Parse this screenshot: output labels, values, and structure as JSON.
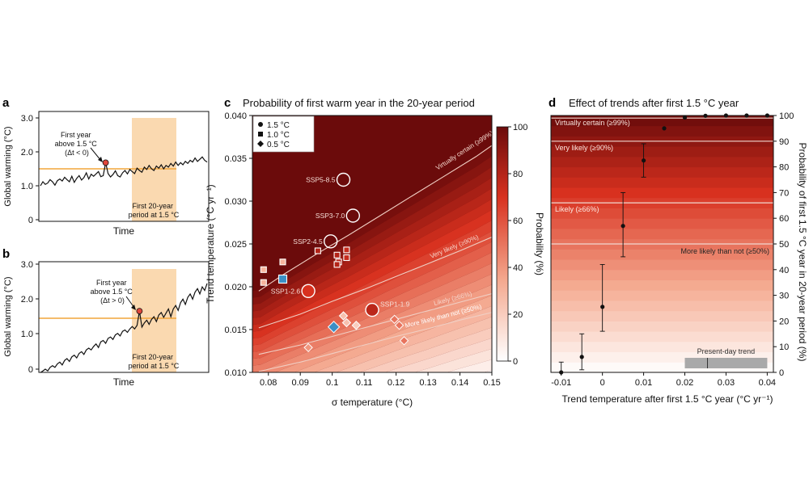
{
  "colors": {
    "orange_line": "#f2a53a",
    "band": "#fad9b0",
    "red_point": "#e0463a",
    "marker_blue": "#3b8fc6",
    "marker_orange": "#f6b58c",
    "dark": "#6b0b0b",
    "contour": "#f6d9cf"
  },
  "panel_a": {
    "letter": "a",
    "ylabel": "Global warming (°C)",
    "xlabel": "Time",
    "yticks": [
      "0",
      "1.0",
      "2.0",
      "3.0"
    ],
    "annotation_lines": [
      "First year",
      "above 1.5 °C",
      "(Δt < 0)"
    ],
    "band_label_lines": [
      "First 20-year",
      "period at 1.5 °C"
    ],
    "series": [
      1.0,
      1.12,
      1.04,
      1.08,
      1.18,
      1.12,
      1.02,
      1.15,
      1.2,
      1.14,
      1.25,
      1.18,
      1.12,
      1.28,
      1.1,
      1.22,
      1.3,
      1.17,
      1.24,
      1.38,
      1.2,
      1.34,
      1.28,
      1.35,
      1.42,
      1.27,
      1.3,
      1.68,
      1.36,
      1.26,
      1.33,
      1.44,
      1.3,
      1.26,
      1.38,
      1.45,
      1.35,
      1.48,
      1.42,
      1.36,
      1.52,
      1.45,
      1.4,
      1.55,
      1.48,
      1.6,
      1.5,
      1.45,
      1.58,
      1.52,
      1.62,
      1.5,
      1.6,
      1.55,
      1.66,
      1.58,
      1.7,
      1.6,
      1.68,
      1.62,
      1.72,
      1.66,
      1.75,
      1.7,
      1.82,
      1.72,
      1.78,
      1.85,
      1.75,
      1.7
    ]
  },
  "panel_b": {
    "letter": "b",
    "ylabel": "Global warming (°C)",
    "xlabel": "Time",
    "yticks": [
      "0",
      "1.0",
      "2.0",
      "3.0"
    ],
    "annotation_lines": [
      "First year",
      "above 1.5 °C",
      "(Δt > 0)"
    ],
    "band_label_lines": [
      "First 20-year",
      "period at 1.5 °C"
    ],
    "series": [
      -0.1,
      -0.05,
      0.0,
      -0.05,
      0.05,
      0.1,
      0.05,
      0.15,
      0.2,
      0.12,
      0.25,
      0.3,
      0.22,
      0.35,
      0.4,
      0.32,
      0.45,
      0.5,
      0.42,
      0.55,
      0.6,
      0.55,
      0.65,
      0.72,
      0.62,
      0.78,
      0.82,
      0.74,
      0.88,
      0.92,
      0.85,
      0.98,
      1.02,
      0.95,
      1.08,
      1.12,
      1.05,
      1.15,
      1.22,
      1.15,
      1.25,
      1.66,
      1.2,
      1.32,
      1.4,
      1.28,
      1.42,
      1.5,
      1.36,
      1.55,
      1.62,
      1.48,
      1.6,
      1.72,
      1.5,
      1.72,
      1.82,
      1.68,
      1.9,
      2.0,
      1.85,
      2.05,
      2.15,
      2.0,
      2.2,
      2.3,
      2.15,
      2.35,
      2.25,
      2.45
    ]
  },
  "chart_data": [
    {
      "panel": "c",
      "type": "heatmap",
      "title": "Probability of first warm year in the 20-year period",
      "xlabel": "σ temperature (°C)",
      "ylabel": "Trend temperature (°C yr⁻¹)",
      "xlim": [
        0.075,
        0.15
      ],
      "ylim": [
        0.01,
        0.04
      ],
      "xticks": [
        "0.08",
        "0.09",
        "0.1",
        "0.11",
        "0.12",
        "0.13",
        "0.14",
        "0.15"
      ],
      "yticks": [
        "0.010",
        "0.015",
        "0.020",
        "0.025",
        "0.030",
        "0.035",
        "0.040"
      ],
      "colorbar": {
        "label": "Probability (%)",
        "ticks": [
          "0",
          "20",
          "40",
          "60",
          "80",
          "100"
        ]
      },
      "legend": [
        {
          "symbol": "circle",
          "label": "1.5 °C"
        },
        {
          "symbol": "square",
          "label": "1.0 °C"
        },
        {
          "symbol": "diamond",
          "label": "0.5 °C"
        }
      ],
      "contours": [
        {
          "label": "Virtually certain (≥99%)",
          "points": [
            [
              0.077,
              0.0195
            ],
            [
              0.085,
              0.0215
            ],
            [
              0.095,
              0.0238
            ],
            [
              0.105,
              0.026
            ],
            [
              0.115,
              0.0283
            ],
            [
              0.125,
              0.0306
            ],
            [
              0.135,
              0.0329
            ],
            [
              0.145,
              0.0352
            ],
            [
              0.15,
              0.0365
            ]
          ]
        },
        {
          "label": "Very likely (≥90%)",
          "points": [
            [
              0.077,
              0.0152
            ],
            [
              0.09,
              0.0168
            ],
            [
              0.1,
              0.0183
            ],
            [
              0.11,
              0.0197
            ],
            [
              0.12,
              0.0212
            ],
            [
              0.13,
              0.0227
            ],
            [
              0.14,
              0.0242
            ],
            [
              0.15,
              0.0258
            ]
          ]
        },
        {
          "label": "Likely (≥66%)",
          "points": [
            [
              0.077,
              0.0121
            ],
            [
              0.09,
              0.0132
            ],
            [
              0.1,
              0.0142
            ],
            [
              0.11,
              0.0152
            ],
            [
              0.12,
              0.0162
            ],
            [
              0.13,
              0.0172
            ],
            [
              0.14,
              0.0182
            ],
            [
              0.15,
              0.0192
            ]
          ]
        },
        {
          "label": "More likely than not (≥50%)",
          "points": [
            [
              0.077,
              0.0101
            ],
            [
              0.09,
              0.0112
            ],
            [
              0.1,
              0.0122
            ],
            [
              0.11,
              0.0132
            ],
            [
              0.12,
              0.0142
            ],
            [
              0.13,
              0.0151
            ],
            [
              0.14,
              0.0161
            ],
            [
              0.15,
              0.017
            ]
          ]
        }
      ],
      "points": [
        {
          "label": "SSP5-8.5",
          "shape": "circle",
          "x": 0.1035,
          "y": 0.0325,
          "p": 100
        },
        {
          "label": "SSP3-7.0",
          "shape": "circle",
          "x": 0.1065,
          "y": 0.0283,
          "p": 100
        },
        {
          "label": "SSP2-4.5",
          "shape": "circle",
          "x": 0.0995,
          "y": 0.0253,
          "p": 100
        },
        {
          "label": "SSP1-2.6",
          "shape": "circle",
          "x": 0.0925,
          "y": 0.0195,
          "p": 70
        },
        {
          "label": "SSP1-1.9",
          "shape": "circle",
          "x": 0.1125,
          "y": 0.0173,
          "p": 78
        },
        {
          "label": "",
          "shape": "square",
          "x": 0.0785,
          "y": 0.022,
          "p": 30
        },
        {
          "label": "",
          "shape": "square",
          "x": 0.0785,
          "y": 0.0205,
          "p": 30
        },
        {
          "label": "",
          "shape": "square",
          "x": 0.0845,
          "y": 0.0229,
          "p": 30
        },
        {
          "label": "",
          "shape": "square",
          "x": 0.0845,
          "y": 0.0209,
          "p": 0
        },
        {
          "label": "",
          "shape": "square",
          "x": 0.0955,
          "y": 0.0242,
          "p": 80
        },
        {
          "label": "",
          "shape": "square",
          "x": 0.1015,
          "y": 0.0237,
          "p": 80
        },
        {
          "label": "",
          "shape": "square",
          "x": 0.102,
          "y": 0.0229,
          "p": 80
        },
        {
          "label": "",
          "shape": "square",
          "x": 0.1015,
          "y": 0.0226,
          "p": 80
        },
        {
          "label": "",
          "shape": "square",
          "x": 0.1045,
          "y": 0.0243,
          "p": 75
        },
        {
          "label": "",
          "shape": "square",
          "x": 0.1045,
          "y": 0.0234,
          "p": 75
        },
        {
          "label": "",
          "shape": "diamond",
          "x": 0.0925,
          "y": 0.0129,
          "p": 40
        },
        {
          "label": "",
          "shape": "diamond",
          "x": 0.1005,
          "y": 0.0153,
          "p": 0
        },
        {
          "label": "",
          "shape": "diamond",
          "x": 0.1035,
          "y": 0.0166,
          "p": 25
        },
        {
          "label": "",
          "shape": "diamond",
          "x": 0.1045,
          "y": 0.0158,
          "p": 25
        },
        {
          "label": "",
          "shape": "diamond",
          "x": 0.1075,
          "y": 0.0155,
          "p": 20
        },
        {
          "label": "",
          "shape": "diamond",
          "x": 0.1195,
          "y": 0.0162,
          "p": 50
        },
        {
          "label": "",
          "shape": "diamond",
          "x": 0.121,
          "y": 0.0155,
          "p": 50
        },
        {
          "label": "",
          "shape": "diamond",
          "x": 0.1225,
          "y": 0.0137,
          "p": 50
        }
      ]
    },
    {
      "panel": "d",
      "type": "scatter",
      "title": "Effect of trends after first 1.5 °C year",
      "xlabel": "Trend temperature after first 1.5 °C year (°C yr⁻¹)",
      "ylabel": "Probability of first 1.5 °C year in 20-year period (%)",
      "xlim": [
        -0.0125,
        0.0415
      ],
      "ylim": [
        0,
        100
      ],
      "xticks": [
        "-0.01",
        "0",
        "0.01",
        "0.02",
        "0.03",
        "0.04"
      ],
      "yticks": [
        "0",
        "10",
        "20",
        "30",
        "40",
        "50",
        "60",
        "70",
        "80",
        "90",
        "100"
      ],
      "thresholds": [
        {
          "label": "Virtually certain (≥99%)",
          "value": 99
        },
        {
          "label": "Very likely (≥90%)",
          "value": 90
        },
        {
          "label": "Likely (≥66%)",
          "value": 66
        },
        {
          "label": "More likely than not (≥50%)",
          "value": 50
        }
      ],
      "x": [
        -0.01,
        -0.005,
        0.0,
        0.005,
        0.01,
        0.015,
        0.02,
        0.025,
        0.03,
        0.035,
        0.04
      ],
      "y": [
        0,
        6,
        25.5,
        57,
        82.5,
        95,
        99.2,
        99.9,
        100,
        100,
        100
      ],
      "err_low": [
        0,
        1,
        16,
        45,
        76,
        95,
        99.2,
        99.9,
        100,
        100,
        100
      ],
      "err_high": [
        4,
        15,
        42,
        70,
        89,
        95,
        99.2,
        99.9,
        100,
        100,
        100
      ],
      "present_day_trend": {
        "label": "Present-day trend",
        "low": 0.02,
        "high": 0.04,
        "median": 0.0255
      }
    }
  ]
}
